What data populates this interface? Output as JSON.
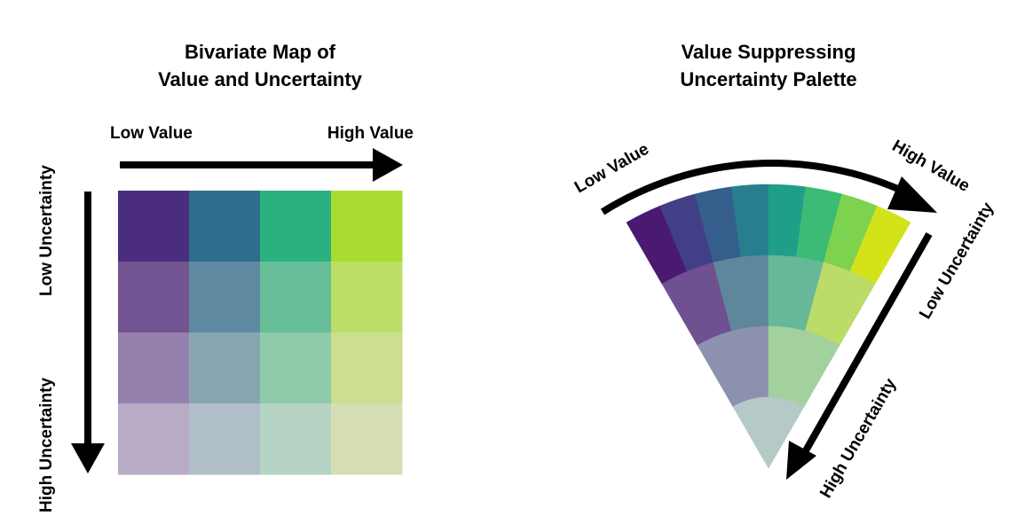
{
  "left": {
    "title_line1": "Bivariate Map of",
    "title_line2": "Value and Uncertainty",
    "x_low_label": "Low Value",
    "x_high_label": "High Value",
    "y_low_label": "Low Uncertainty",
    "y_high_label": "High Uncertainty",
    "grid_colors": [
      [
        "#4a2d7f",
        "#2e6d8e",
        "#2bb07f",
        "#a8dc31"
      ],
      [
        "#725492",
        "#5f8aa1",
        "#66bf98",
        "#bedf67"
      ],
      [
        "#9480ad",
        "#87a6b2",
        "#8fcaab",
        "#cbdf8f"
      ],
      [
        "#b7abc6",
        "#b0bfc7",
        "#b5d4c3",
        "#d6deb4"
      ]
    ]
  },
  "right": {
    "title_line1": "Value Suppressing",
    "title_line2": "Uncertainty Palette",
    "value_low_label": "Low Value",
    "value_high_label": "High Value",
    "unc_low_label": "Low Uncertainty",
    "unc_high_label": "High Uncertainty",
    "rings": [
      [
        "#4a1970",
        "#413f86",
        "#355e8c",
        "#277f8e",
        "#1f9e89",
        "#3bbb75",
        "#7dd350",
        "#d4e21a"
      ],
      [
        "#6f5090",
        "#5f879c",
        "#66b898",
        "#bcdb68"
      ],
      [
        "#8d91b0",
        "#a2d19e"
      ],
      [
        "#b5c9c6"
      ]
    ]
  }
}
